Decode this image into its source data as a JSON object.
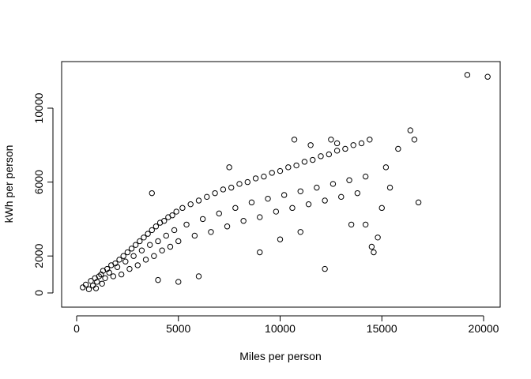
{
  "chart_data": {
    "type": "scatter",
    "title": "",
    "xlabel": "Miles per person",
    "ylabel": "kWh per person",
    "xlim": [
      0,
      20500
    ],
    "ylim": [
      0,
      12000
    ],
    "xticks": [
      0,
      5000,
      10000,
      15000,
      20000
    ],
    "yticks": [
      0,
      2000,
      6000,
      10000
    ],
    "grid": false,
    "marker": "open-circle",
    "color": "#000000",
    "points": [
      [
        300,
        300
      ],
      [
        450,
        450
      ],
      [
        600,
        200
      ],
      [
        700,
        650
      ],
      [
        800,
        400
      ],
      [
        900,
        800
      ],
      [
        950,
        250
      ],
      [
        1000,
        600
      ],
      [
        1100,
        900
      ],
      [
        1200,
        1000
      ],
      [
        1250,
        500
      ],
      [
        1300,
        1200
      ],
      [
        1400,
        800
      ],
      [
        1500,
        1300
      ],
      [
        1600,
        1100
      ],
      [
        1700,
        1500
      ],
      [
        1800,
        900
      ],
      [
        1900,
        1600
      ],
      [
        2000,
        1400
      ],
      [
        2100,
        1800
      ],
      [
        2200,
        1000
      ],
      [
        2300,
        2000
      ],
      [
        2400,
        1700
      ],
      [
        2500,
        2200
      ],
      [
        2600,
        1300
      ],
      [
        2700,
        2400
      ],
      [
        2800,
        2000
      ],
      [
        2900,
        2600
      ],
      [
        3000,
        1500
      ],
      [
        3100,
        2800
      ],
      [
        3200,
        2300
      ],
      [
        3300,
        3000
      ],
      [
        3400,
        1800
      ],
      [
        3500,
        3200
      ],
      [
        3600,
        2600
      ],
      [
        3700,
        3400
      ],
      [
        3800,
        2000
      ],
      [
        3900,
        3600
      ],
      [
        4000,
        2800
      ],
      [
        4100,
        3800
      ],
      [
        4200,
        2300
      ],
      [
        4300,
        3900
      ],
      [
        4400,
        3100
      ],
      [
        4500,
        4100
      ],
      [
        4600,
        2500
      ],
      [
        4700,
        4200
      ],
      [
        4800,
        3400
      ],
      [
        4900,
        4400
      ],
      [
        5000,
        2800
      ],
      [
        5200,
        4600
      ],
      [
        5400,
        3700
      ],
      [
        5600,
        4800
      ],
      [
        5800,
        3100
      ],
      [
        6000,
        5000
      ],
      [
        6200,
        4000
      ],
      [
        6400,
        5200
      ],
      [
        6600,
        3300
      ],
      [
        6800,
        5400
      ],
      [
        7000,
        4300
      ],
      [
        7200,
        5600
      ],
      [
        7400,
        3600
      ],
      [
        7600,
        5700
      ],
      [
        7800,
        4600
      ],
      [
        8000,
        5900
      ],
      [
        8200,
        3900
      ],
      [
        8400,
        6000
      ],
      [
        8600,
        4900
      ],
      [
        8800,
        6200
      ],
      [
        9000,
        4100
      ],
      [
        9200,
        6300
      ],
      [
        9400,
        5100
      ],
      [
        9600,
        6500
      ],
      [
        9800,
        4400
      ],
      [
        10000,
        6600
      ],
      [
        10200,
        5300
      ],
      [
        10400,
        6800
      ],
      [
        10600,
        4600
      ],
      [
        10800,
        6900
      ],
      [
        11000,
        5500
      ],
      [
        11200,
        7100
      ],
      [
        11400,
        4800
      ],
      [
        11600,
        7200
      ],
      [
        11800,
        5700
      ],
      [
        12000,
        7400
      ],
      [
        12200,
        5000
      ],
      [
        12400,
        7500
      ],
      [
        12600,
        5900
      ],
      [
        12800,
        7700
      ],
      [
        13000,
        5200
      ],
      [
        13200,
        7800
      ],
      [
        13400,
        6100
      ],
      [
        13600,
        8000
      ],
      [
        13800,
        5400
      ],
      [
        14000,
        8100
      ],
      [
        14200,
        6300
      ],
      [
        14400,
        8300
      ],
      [
        14500,
        2500
      ],
      [
        14600,
        2200
      ],
      [
        14800,
        3000
      ],
      [
        15000,
        4600
      ],
      [
        15200,
        6800
      ],
      [
        15400,
        5700
      ],
      [
        15800,
        7800
      ],
      [
        16400,
        8800
      ],
      [
        16600,
        8300
      ],
      [
        16800,
        4900
      ],
      [
        19200,
        11800
      ],
      [
        20200,
        11700
      ],
      [
        3700,
        5400
      ],
      [
        4000,
        700
      ],
      [
        5000,
        600
      ],
      [
        6000,
        900
      ],
      [
        12200,
        1300
      ],
      [
        7500,
        6800
      ],
      [
        9000,
        2200
      ],
      [
        10000,
        2900
      ],
      [
        11000,
        3300
      ],
      [
        13500,
        3700
      ],
      [
        14200,
        3700
      ],
      [
        12500,
        8300
      ],
      [
        12800,
        8100
      ],
      [
        11500,
        8000
      ],
      [
        10700,
        8300
      ]
    ]
  }
}
